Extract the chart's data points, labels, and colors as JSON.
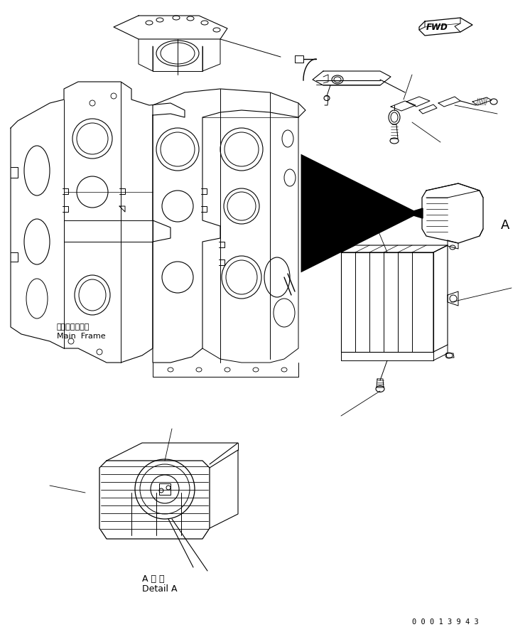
{
  "bg_color": "#ffffff",
  "line_color": "#000000",
  "fig_width": 7.46,
  "fig_height": 8.89,
  "dpi": 100,
  "text_main_frame_jp": "メインフレーム",
  "text_main_frame_en": "Main  Frame",
  "text_detail_jp": "A 詳 細",
  "text_detail_en": "Detail A",
  "text_fwd": "FWD",
  "text_label_A": "A",
  "part_number": "0 0 0 1 3 9 4 3"
}
